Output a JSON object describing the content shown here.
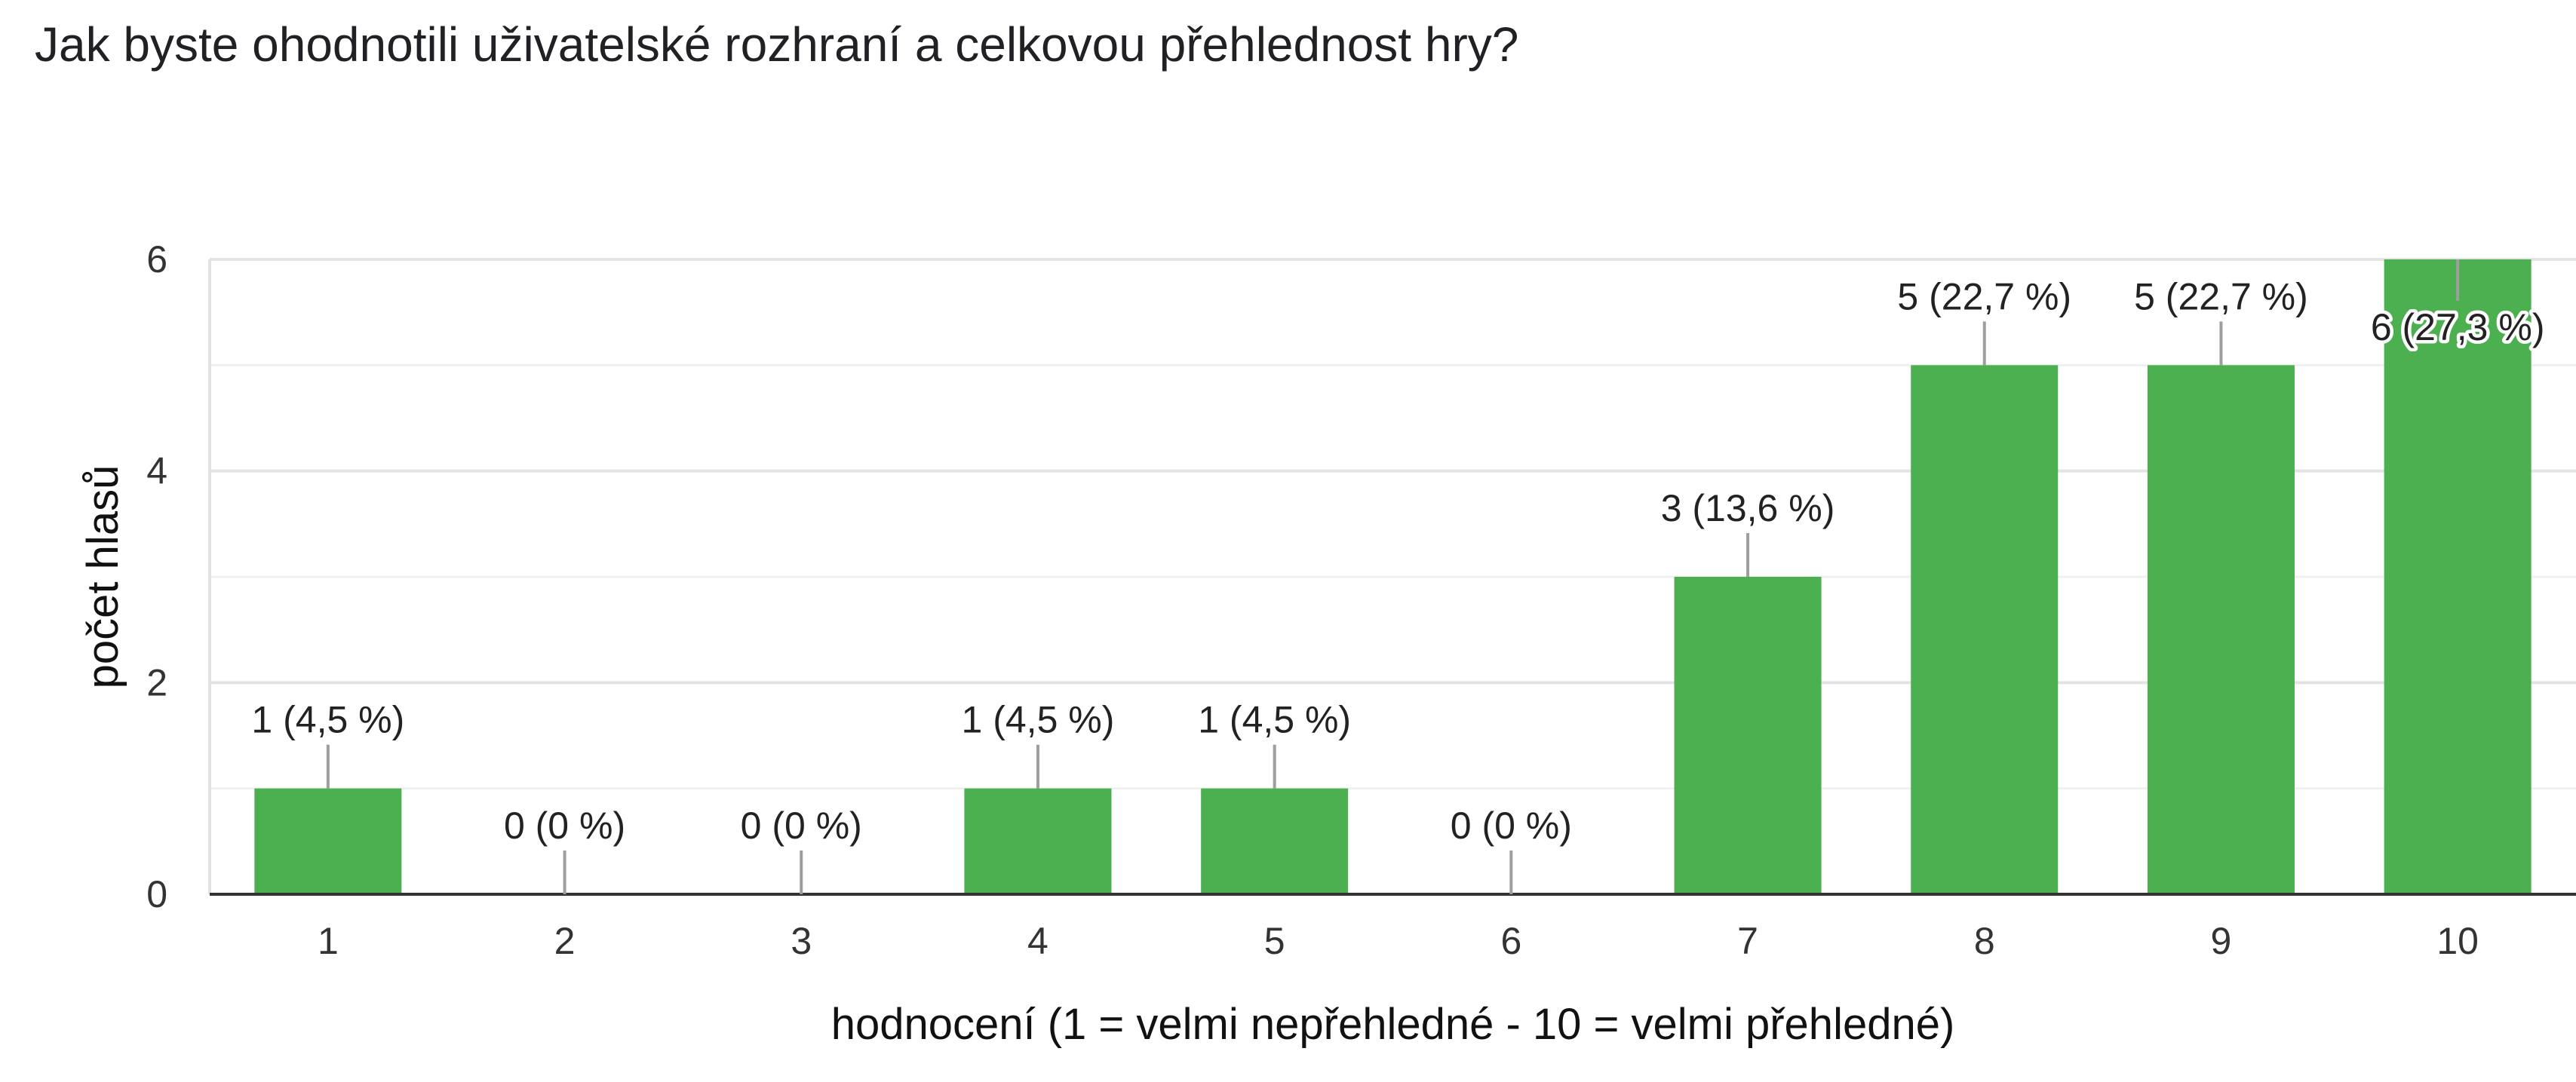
{
  "title": "Jak byste ohodnotili uživatelské rozhraní a celkovou přehlednost hry?",
  "chart_data": {
    "type": "bar",
    "categories": [
      "1",
      "2",
      "3",
      "4",
      "5",
      "6",
      "7",
      "8",
      "9",
      "10"
    ],
    "values": [
      1,
      0,
      0,
      1,
      1,
      0,
      3,
      5,
      5,
      6
    ],
    "data_labels": [
      "1 (4,5 %)",
      "0 (0 %)",
      "0 (0 %)",
      "1 (4,5 %)",
      "1 (4,5 %)",
      "0 (0 %)",
      "3 (13,6 %)",
      "5 (22,7 %)",
      "5 (22,7 %)",
      "6 (27,3 %)"
    ],
    "xlabel": "hodnocení (1 = velmi nepřehledné - 10 = velmi přehledné)",
    "ylabel": "počet hlasů",
    "ylim": [
      0,
      6
    ],
    "yticks": [
      "0",
      "2",
      "4",
      "6"
    ],
    "grid": true,
    "bar_color": "#4caf50"
  }
}
